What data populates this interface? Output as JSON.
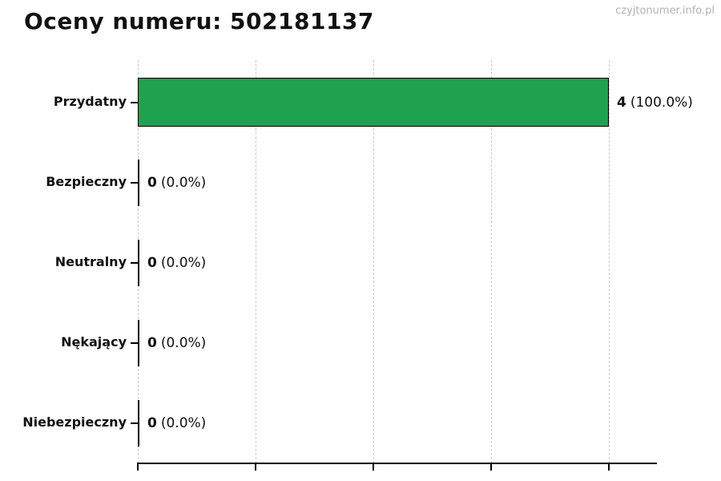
{
  "watermark": "czyjtonumer.info.pl",
  "chart_data": {
    "type": "bar",
    "orientation": "horizontal",
    "title": "Oceny numeru: 502181137",
    "categories": [
      "Przydatny",
      "Bezpieczny",
      "Neutralny",
      "Nękający",
      "Niebezpieczny"
    ],
    "values": [
      4,
      0,
      0,
      0,
      0
    ],
    "percentages": [
      100.0,
      0.0,
      0.0,
      0.0,
      0.0
    ],
    "value_labels": [
      "4 (100.0%)",
      "0 (0.0%)",
      "0 (0.0%)",
      "0 (0.0%)",
      "0 (0.0%)"
    ],
    "pct_labels": [
      "(100.0%)",
      "(0.0%)",
      "(0.0%)",
      "(0.0%)",
      "(0.0%)"
    ],
    "xlabel": "",
    "ylabel": "",
    "xlim": [
      0,
      4.4
    ],
    "xticks": [
      0,
      1,
      2,
      3,
      4
    ],
    "grid": "vertical-dashed",
    "legend": "none",
    "bar_color": "#1fa24f",
    "bar_edge_color": "#000000",
    "gridline_color": "#cccccc",
    "axis_color": "#000000",
    "watermark_color": "#b3b3b3"
  }
}
